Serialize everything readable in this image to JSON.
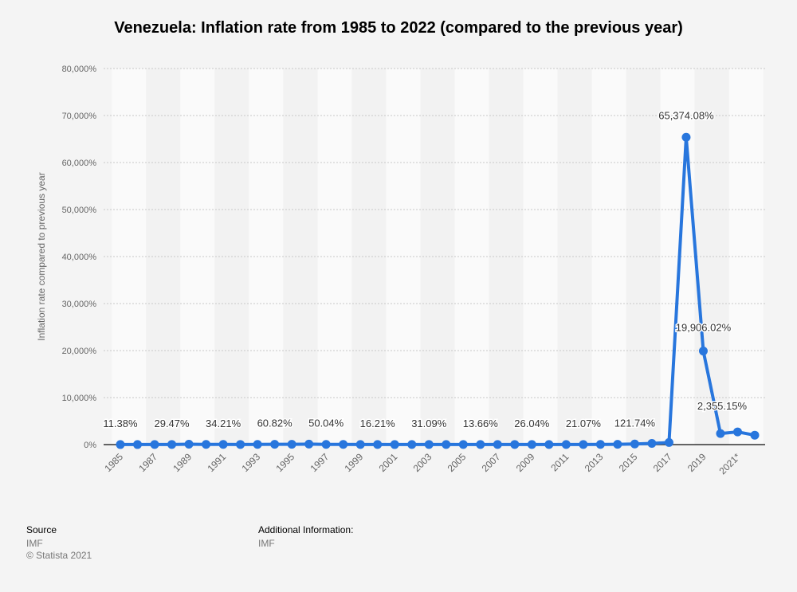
{
  "title": "Venezuela: Inflation rate from 1985 to 2022 (compared to the previous year)",
  "chart_data": {
    "type": "line",
    "title": "Venezuela: Inflation rate from 1985 to 2022 (compared to the previous year)",
    "xlabel": "",
    "ylabel": "Inflation rate compared to previous year",
    "ylim": [
      0,
      80000
    ],
    "yticks": [
      "0%",
      "10,000%",
      "20,000%",
      "30,000%",
      "40,000%",
      "50,000%",
      "60,000%",
      "70,000%",
      "80,000%"
    ],
    "ytick_values": [
      0,
      10000,
      20000,
      30000,
      40000,
      50000,
      60000,
      70000,
      80000
    ],
    "xtick_labels": [
      "1985",
      "1987",
      "1989",
      "1991",
      "1993",
      "1995",
      "1997",
      "1999",
      "2001",
      "2003",
      "2005",
      "2007",
      "2009",
      "2011",
      "2013",
      "2015",
      "2017",
      "2019",
      "2021*"
    ],
    "x": [
      "1985",
      "1986",
      "1987",
      "1988",
      "1989",
      "1990",
      "1991",
      "1992",
      "1993",
      "1994",
      "1995",
      "1996",
      "1997",
      "1998",
      "1999",
      "2000",
      "2001",
      "2002",
      "2003",
      "2004",
      "2005",
      "2006",
      "2007",
      "2008",
      "2009",
      "2010",
      "2011",
      "2012",
      "2013",
      "2014",
      "2015",
      "2016",
      "2017",
      "2018",
      "2019",
      "2020",
      "2021*",
      "2022*"
    ],
    "values": [
      11.38,
      11.53,
      28.12,
      29.47,
      84.46,
      40.66,
      34.21,
      31.44,
      38.12,
      60.82,
      59.92,
      99.88,
      50.04,
      35.78,
      23.57,
      16.21,
      12.53,
      22.43,
      31.09,
      21.75,
      15.95,
      13.66,
      18.7,
      31.44,
      26.04,
      28.19,
      26.09,
      21.07,
      43.48,
      57.3,
      121.74,
      254.95,
      438.12,
      65374.08,
      19906.02,
      2355.15,
      2700,
      2000
    ],
    "data_labels": [
      {
        "index": 0,
        "text": "11.38%"
      },
      {
        "index": 3,
        "text": "29.47%"
      },
      {
        "index": 6,
        "text": "34.21%"
      },
      {
        "index": 9,
        "text": "60.82%"
      },
      {
        "index": 12,
        "text": "50.04%"
      },
      {
        "index": 15,
        "text": "16.21%"
      },
      {
        "index": 18,
        "text": "31.09%"
      },
      {
        "index": 21,
        "text": "13.66%"
      },
      {
        "index": 24,
        "text": "26.04%"
      },
      {
        "index": 27,
        "text": "21.07%"
      },
      {
        "index": 30,
        "text": "121.74%"
      },
      {
        "index": 33,
        "text": "65,374.08%"
      },
      {
        "index": 34,
        "text": "19,906.02%"
      },
      {
        "index": 35,
        "text": "2,355.15%"
      }
    ],
    "grid": true,
    "series_color": "#2876dd"
  },
  "footer": {
    "source_label": "Source",
    "source_value": "IMF",
    "copyright": "© Statista 2021",
    "additional_label": "Additional Information:",
    "additional_value": "IMF"
  }
}
